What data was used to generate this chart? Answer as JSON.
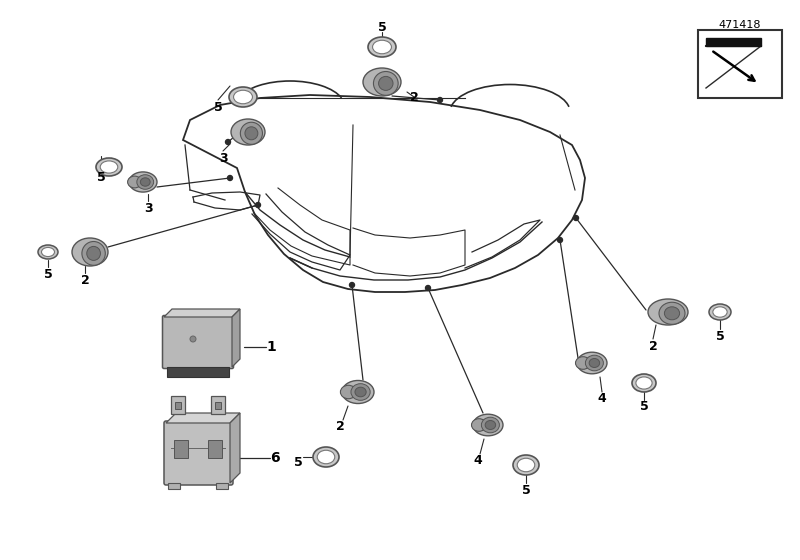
{
  "bg": "#ffffff",
  "lc": "#2a2a2a",
  "gray1": "#b0b0b0",
  "gray2": "#909090",
  "gray3": "#cccccc",
  "dark": "#444444",
  "diagram_num": "471418",
  "figsize": [
    8.0,
    5.6
  ],
  "dpi": 100
}
